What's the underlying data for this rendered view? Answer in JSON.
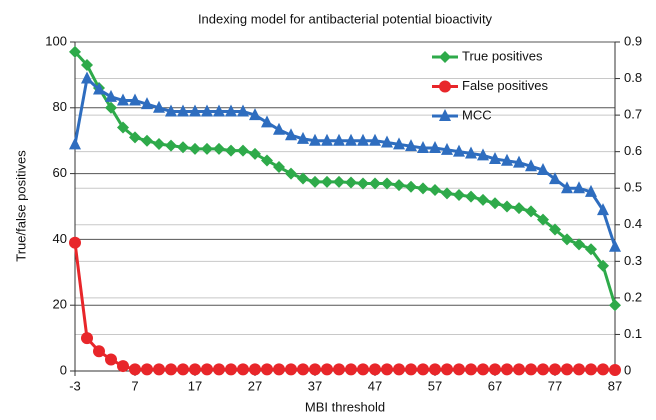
{
  "chart_data": {
    "type": "line",
    "title": "Indexing model for antibacterial potential bioactivity",
    "x_label": "MBI threshold",
    "y_label": "True/false positives",
    "x": [
      -3,
      -1,
      1,
      3,
      5,
      7,
      9,
      11,
      13,
      15,
      17,
      19,
      21,
      23,
      25,
      27,
      29,
      31,
      33,
      35,
      37,
      39,
      41,
      43,
      45,
      47,
      49,
      51,
      53,
      55,
      57,
      59,
      61,
      63,
      65,
      67,
      69,
      71,
      73,
      75,
      77,
      79,
      81,
      83,
      85,
      87
    ],
    "series": [
      {
        "name": "True positives",
        "color": "#2eaa4a",
        "marker": "diamond",
        "values": [
          97,
          93,
          86,
          80,
          74,
          71,
          70,
          69,
          68.5,
          68,
          67.5,
          67.5,
          67.5,
          67,
          67,
          66,
          64,
          62,
          60,
          58.5,
          57.5,
          57.5,
          57.5,
          57.3,
          57,
          57,
          57,
          56.5,
          56,
          55.5,
          55,
          54,
          53.5,
          53,
          52,
          51,
          50,
          49.5,
          48.5,
          46,
          43,
          40,
          38.5,
          37,
          32,
          20
        ]
      },
      {
        "name": "False positives",
        "color": "#e8262a",
        "marker": "circle",
        "values": [
          39,
          10,
          6,
          3.5,
          1.5,
          0.5,
          0.5,
          0.5,
          0.5,
          0.5,
          0.5,
          0.5,
          0.5,
          0.5,
          0.5,
          0.5,
          0.5,
          0.5,
          0.5,
          0.5,
          0.5,
          0.5,
          0.5,
          0.5,
          0.5,
          0.5,
          0.5,
          0.5,
          0.5,
          0.5,
          0.5,
          0.5,
          0.5,
          0.5,
          0.5,
          0.5,
          0.5,
          0.5,
          0.5,
          0.5,
          0.5,
          0.5,
          0.5,
          0.5,
          0.5,
          0.3
        ]
      },
      {
        "name": "MCC",
        "color": "#2e6dbf",
        "marker": "triangle",
        "axis": "y2",
        "values": [
          0.62,
          0.8,
          0.77,
          0.75,
          0.74,
          0.74,
          0.73,
          0.72,
          0.71,
          0.71,
          0.71,
          0.71,
          0.71,
          0.71,
          0.71,
          0.7,
          0.68,
          0.66,
          0.645,
          0.635,
          0.63,
          0.63,
          0.63,
          0.63,
          0.63,
          0.63,
          0.625,
          0.62,
          0.615,
          0.61,
          0.61,
          0.605,
          0.6,
          0.595,
          0.59,
          0.58,
          0.575,
          0.57,
          0.56,
          0.55,
          0.525,
          0.5,
          0.5,
          0.49,
          0.44,
          0.34
        ]
      }
    ],
    "xlim": [
      -3,
      87
    ],
    "xticks": [
      -3,
      7,
      17,
      27,
      37,
      47,
      57,
      67,
      77,
      87
    ],
    "ylim": [
      0,
      100
    ],
    "yticks": [
      0,
      20,
      40,
      60,
      80,
      100
    ],
    "y2lim": [
      0,
      0.9
    ],
    "y2ticks": [
      0,
      0.1,
      0.2,
      0.3,
      0.4,
      0.5,
      0.6,
      0.7,
      0.8,
      0.9
    ],
    "grid": true,
    "legend": "top-right"
  }
}
